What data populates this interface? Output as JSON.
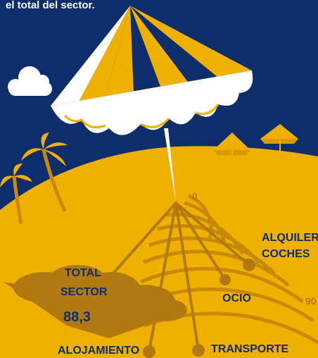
{
  "header": {
    "intro_text": "el total del sector."
  },
  "colors": {
    "sky": "#0d2d6b",
    "sand": "#f0b000",
    "dark_sand": "#b07a10",
    "umbrella_yellow": "#f0b000",
    "white": "#ffffff",
    "label_dark": "#7a4f08"
  },
  "chart_data": {
    "type": "radial-line",
    "axis_ticks": [
      "0",
      "90"
    ],
    "series": [
      {
        "label": "ALQUILER COCHES"
      },
      {
        "label": "OCIO"
      },
      {
        "label": "TRANSPORTE"
      },
      {
        "label": "ALOJAMIENTO"
      }
    ],
    "total": {
      "label_line1": "TOTAL",
      "label_line2": "SECTOR",
      "value": "88,3"
    }
  }
}
